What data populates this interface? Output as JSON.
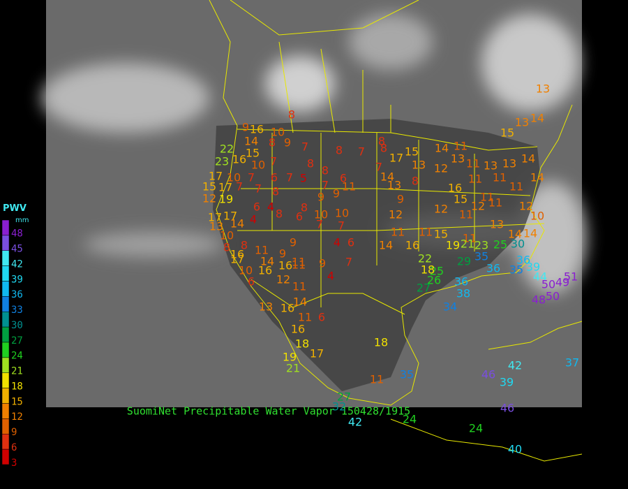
{
  "legend": {
    "title": "PWV",
    "unit": "mm",
    "ticks": [
      48,
      45,
      42,
      39,
      36,
      33,
      30,
      27,
      24,
      21,
      18,
      15,
      12,
      9,
      6,
      3
    ],
    "colors": [
      "#8a1fd0",
      "#7a4ee0",
      "#40e8f0",
      "#20d8f0",
      "#10b8f0",
      "#1080e0",
      "#009090",
      "#00a040",
      "#20d020",
      "#a0e020",
      "#f0e000",
      "#f0b000",
      "#f08000",
      "#e06000",
      "#e03010",
      "#d00000"
    ]
  },
  "caption": "SuomiNet Precipitable Water Vapor 150428/1915",
  "stations": [
    8,
    9,
    16,
    10,
    14,
    8,
    9,
    7,
    8,
    7,
    8,
    8,
    17,
    15,
    14,
    11,
    22,
    15,
    16,
    23,
    10,
    7,
    8,
    13,
    12,
    13,
    11,
    13,
    13,
    14,
    17,
    10,
    7,
    6,
    7,
    5,
    8,
    6,
    7,
    14,
    13,
    8,
    16,
    11,
    11,
    11,
    14,
    15,
    17,
    7,
    7,
    8,
    7,
    9,
    11,
    12,
    19,
    9,
    9,
    15,
    12,
    11,
    11,
    12,
    10,
    6,
    4,
    8,
    8,
    17,
    17,
    4,
    6,
    10,
    10,
    12,
    12,
    11,
    13,
    14,
    7,
    7,
    11,
    11,
    15,
    11,
    13,
    14,
    14,
    10,
    8,
    8,
    11,
    9,
    9,
    4,
    6,
    14,
    16,
    19,
    21,
    23,
    25,
    30,
    16,
    17,
    14,
    11,
    9,
    7,
    22,
    29,
    35,
    36,
    10,
    16,
    16,
    11,
    4,
    25,
    26,
    18,
    36,
    35,
    39,
    44,
    51,
    6,
    12,
    11,
    27,
    36,
    50,
    49,
    38,
    50,
    48,
    13,
    16,
    14,
    11,
    6,
    34,
    16,
    18,
    17,
    18,
    19,
    21,
    11,
    35,
    27,
    32,
    42,
    39,
    46,
    46,
    37,
    42,
    24,
    24,
    40,
    13,
    14,
    13,
    15
  ]
}
